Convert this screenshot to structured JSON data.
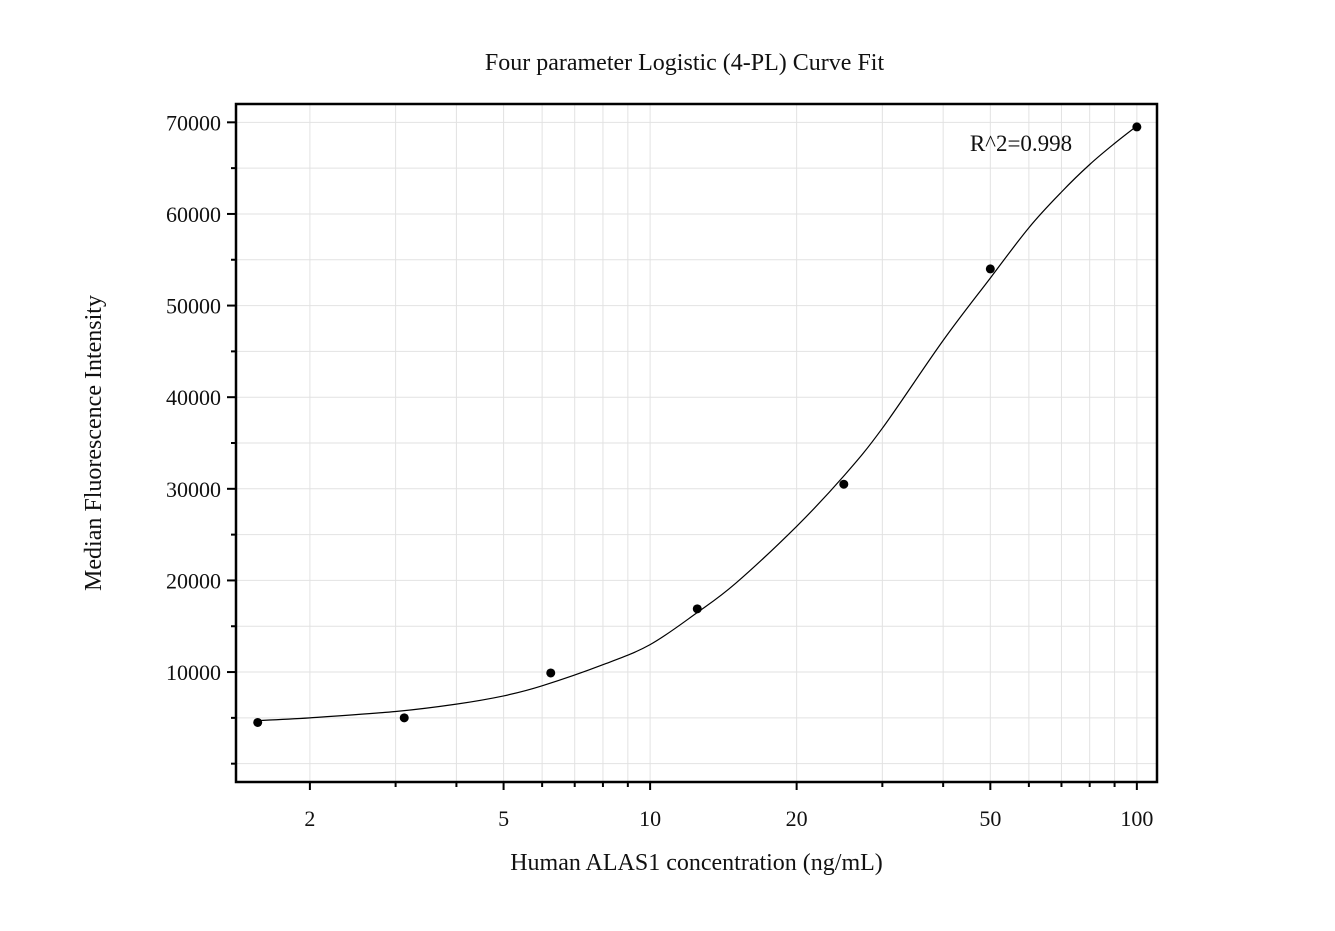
{
  "chart_data": {
    "type": "scatter",
    "title": "Four parameter Logistic (4-PL) Curve Fit",
    "xlabel": "Human ALAS1 concentration (ng/mL)",
    "ylabel": "Median Fluorescence Intensity",
    "x_scale": "log",
    "xlim": [
      1.41,
      110
    ],
    "ylim": [
      -2000,
      72000
    ],
    "x_ticks": [
      2,
      5,
      10,
      20,
      50,
      100
    ],
    "x_tick_labels": [
      "2",
      "5",
      "10",
      "20",
      "50",
      "100"
    ],
    "y_ticks": [
      10000,
      20000,
      30000,
      40000,
      50000,
      60000,
      70000
    ],
    "y_tick_labels": [
      "10000",
      "20000",
      "30000",
      "40000",
      "50000",
      "60000",
      "70000"
    ],
    "grid": true,
    "annotation": "R^2=0.998",
    "series": [
      {
        "type": "scatter",
        "x": [
          1.5625,
          3.125,
          6.25,
          12.5,
          25,
          50,
          100
        ],
        "y": [
          4500,
          5000,
          9900,
          16900,
          30500,
          54000,
          69500
        ]
      },
      {
        "type": "line",
        "x": [
          1.5625,
          2,
          3,
          4,
          5,
          6,
          8,
          10,
          12.5,
          15,
          20,
          25,
          30,
          40,
          50,
          60,
          70,
          80,
          90,
          100
        ],
        "y": [
          4700,
          5000,
          5700,
          6500,
          7400,
          8500,
          10800,
          13000,
          16500,
          19700,
          25900,
          31400,
          36600,
          46200,
          53000,
          58500,
          62400,
          65400,
          67700,
          69600
        ]
      }
    ],
    "colors": {
      "points": "#000000",
      "curve": "#000000",
      "grid": "#e2e2e2",
      "frame": "#000000"
    }
  }
}
